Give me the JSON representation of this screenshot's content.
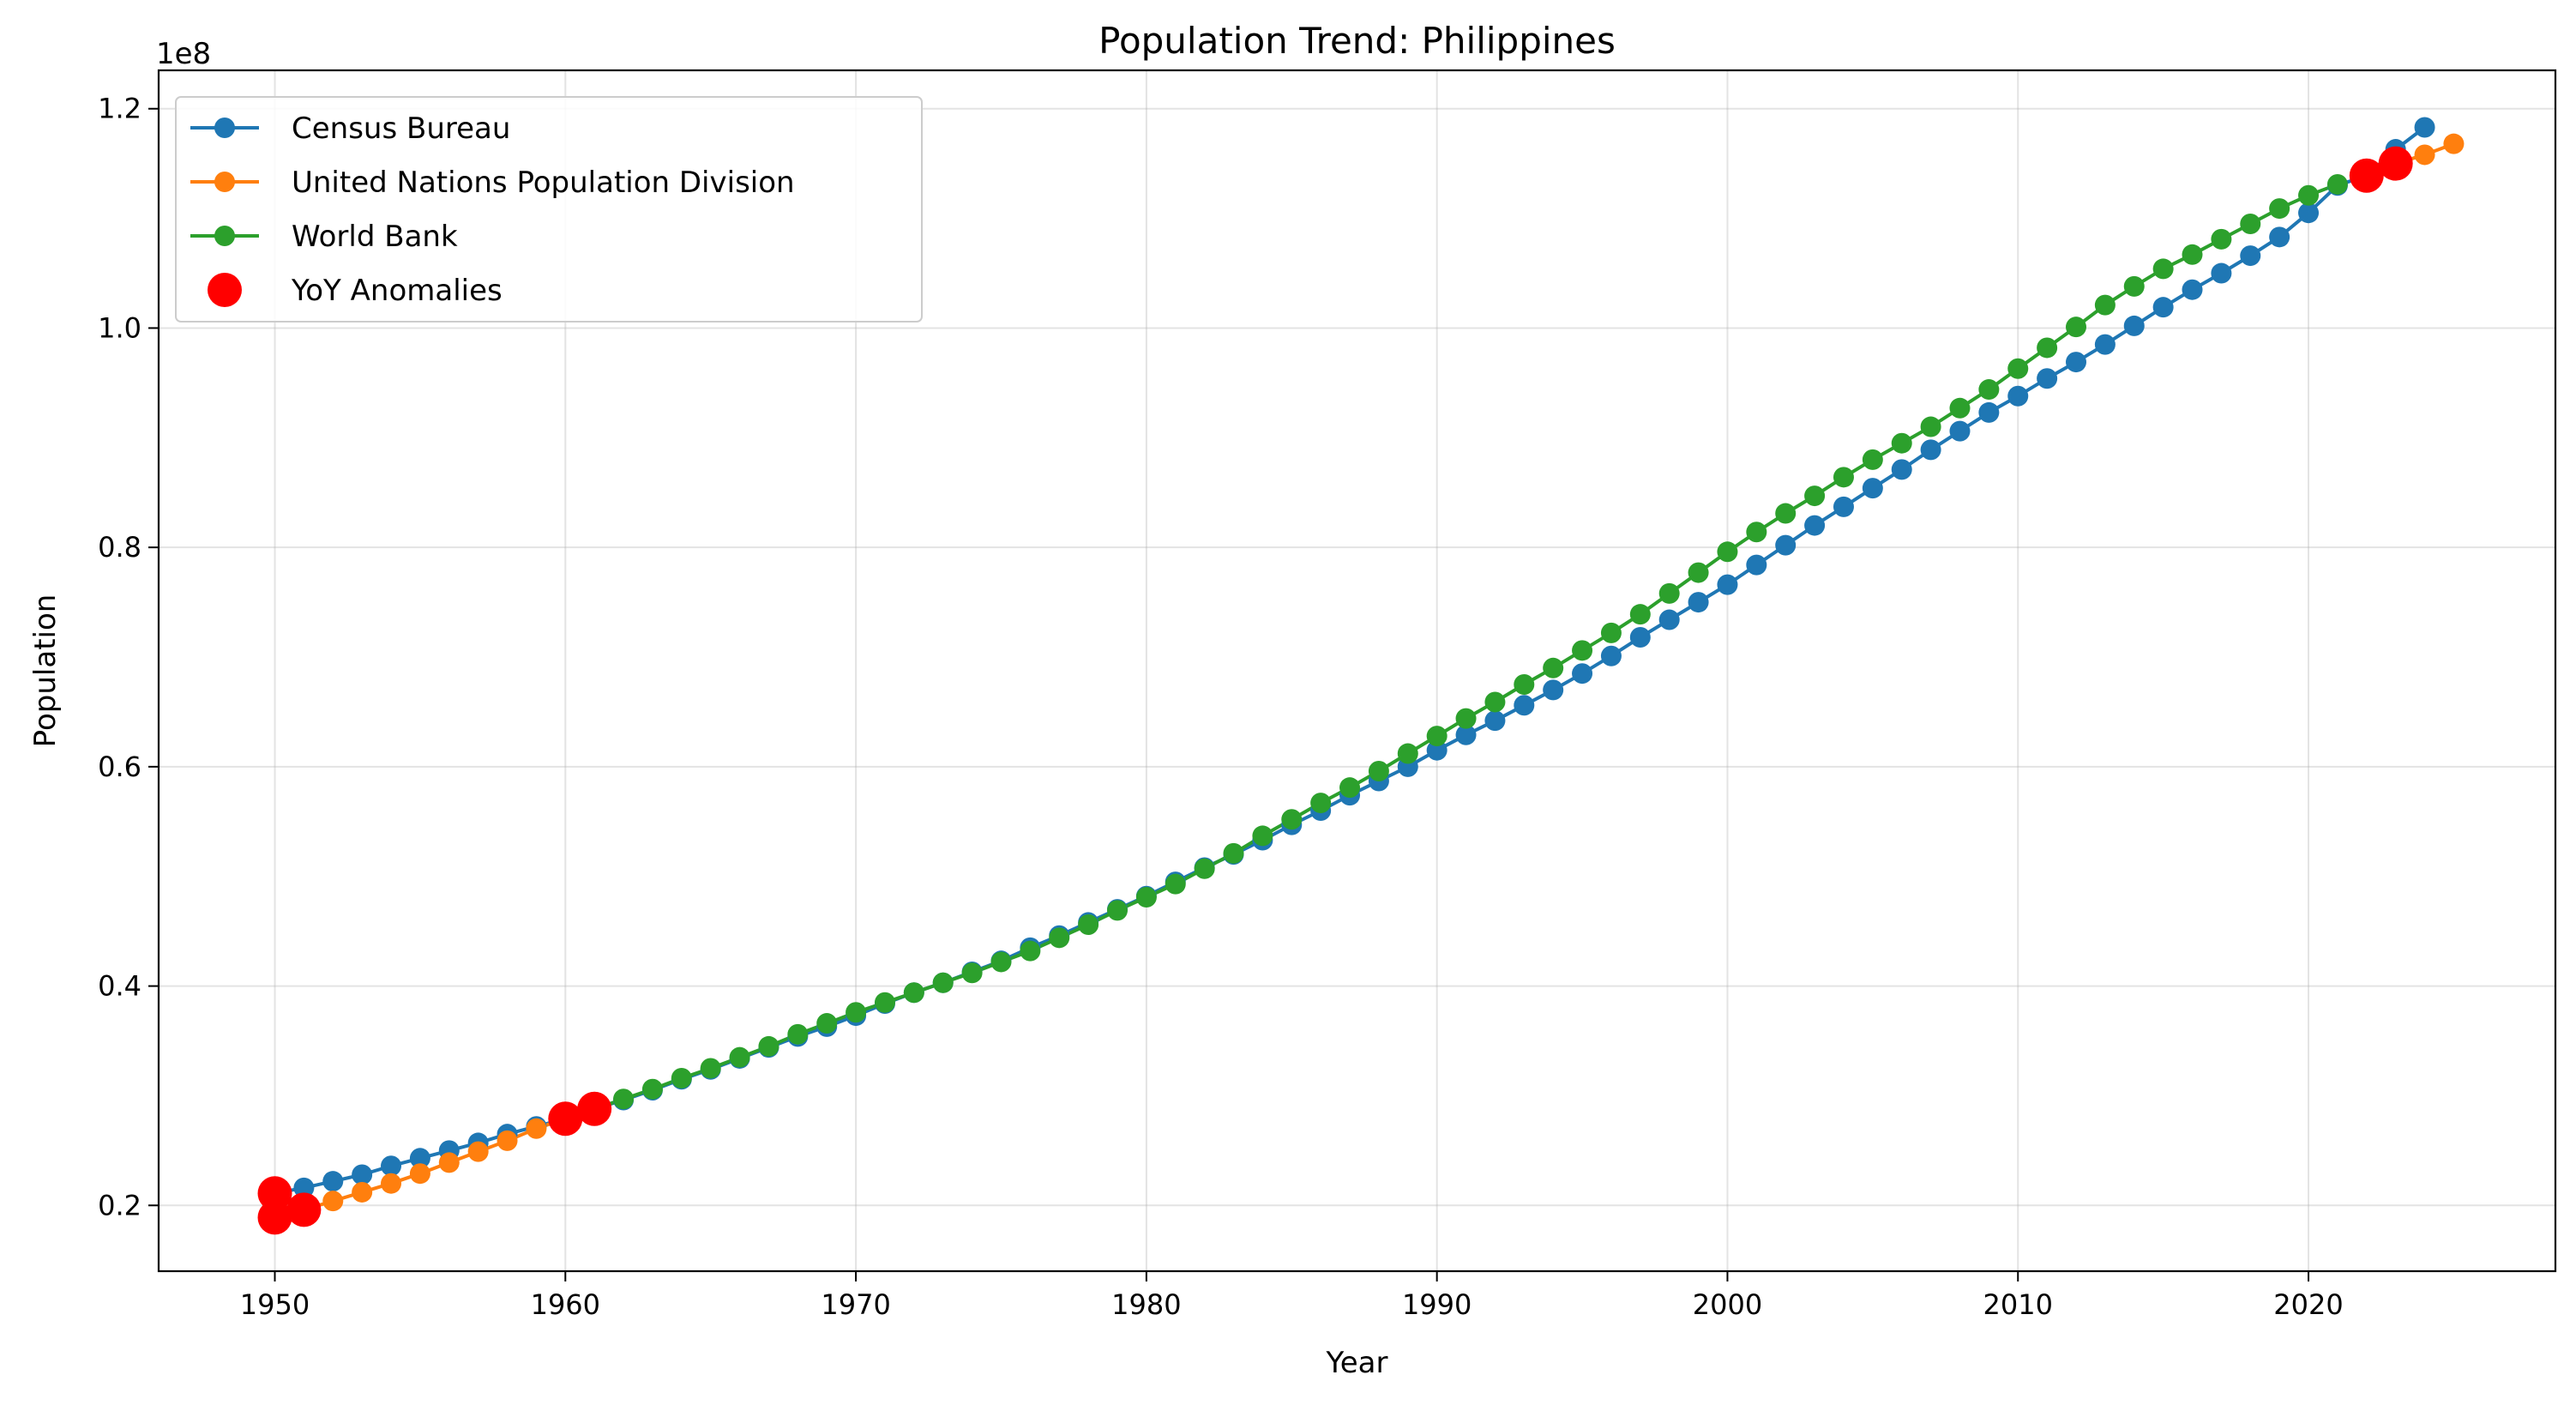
{
  "chart_data": {
    "type": "line",
    "title": "Population Trend: Philippines",
    "xlabel": "Year",
    "ylabel": "Population",
    "y_offset_label": "1e8",
    "y_scale": 100000000,
    "xlim": [
      1946,
      2028.5
    ],
    "ylim": [
      14000000,
      123500000
    ],
    "x_ticks": [
      1950,
      1960,
      1970,
      1980,
      1990,
      2000,
      2010,
      2020
    ],
    "x_tick_labels": [
      "1950",
      "1960",
      "1970",
      "1980",
      "1990",
      "2000",
      "2010",
      "2020"
    ],
    "y_ticks": [
      20000000,
      40000000,
      60000000,
      80000000,
      100000000,
      120000000
    ],
    "y_tick_labels": [
      "0.2",
      "0.4",
      "0.6",
      "0.8",
      "1.0",
      "1.2"
    ],
    "grid": true,
    "legend_position": "top-left",
    "series": [
      {
        "name": "Census Bureau",
        "color": "#1f77b4",
        "x": [
          1950,
          1951,
          1952,
          1953,
          1954,
          1955,
          1956,
          1957,
          1958,
          1959,
          1960,
          1961,
          1962,
          1963,
          1964,
          1965,
          1966,
          1967,
          1968,
          1969,
          1970,
          1971,
          1972,
          1973,
          1974,
          1975,
          1976,
          1977,
          1978,
          1979,
          1980,
          1981,
          1982,
          1983,
          1984,
          1985,
          1986,
          1987,
          1988,
          1989,
          1990,
          1991,
          1992,
          1993,
          1994,
          1995,
          1996,
          1997,
          1998,
          1999,
          2000,
          2001,
          2002,
          2003,
          2004,
          2005,
          2006,
          2007,
          2008,
          2009,
          2010,
          2011,
          2012,
          2013,
          2014,
          2015,
          2016,
          2017,
          2018,
          2019,
          2020,
          2021,
          2022,
          2023,
          2024
        ],
        "y": [
          21100000,
          21600000,
          22200000,
          22800000,
          23600000,
          24300000,
          25000000,
          25700000,
          26500000,
          27200000,
          27900000,
          28800000,
          29600000,
          30500000,
          31500000,
          32400000,
          33400000,
          34400000,
          35400000,
          36300000,
          37300000,
          38400000,
          39400000,
          40300000,
          41300000,
          42300000,
          43500000,
          44600000,
          45800000,
          47000000,
          48200000,
          49500000,
          50800000,
          52000000,
          53300000,
          54700000,
          56000000,
          57400000,
          58700000,
          60000000,
          61500000,
          62900000,
          64200000,
          65600000,
          67000000,
          68500000,
          70100000,
          71800000,
          73400000,
          75000000,
          76600000,
          78400000,
          80200000,
          82000000,
          83700000,
          85400000,
          87100000,
          88900000,
          90600000,
          92300000,
          93800000,
          95400000,
          96900000,
          98500000,
          100200000,
          101900000,
          103500000,
          105000000,
          106600000,
          108300000,
          110500000,
          113000000,
          113900000,
          116300000,
          118300000
        ]
      },
      {
        "name": "United Nations Population Division",
        "color": "#ff7f0e",
        "x": [
          1950,
          1951,
          1952,
          1953,
          1954,
          1955,
          1956,
          1957,
          1958,
          1959,
          1960,
          2022,
          2023,
          2024,
          2025
        ],
        "y": [
          18900000,
          19600000,
          20400000,
          21200000,
          22000000,
          22900000,
          23900000,
          24900000,
          25900000,
          27000000,
          27900000,
          113900000,
          115000000,
          115800000,
          116800000
        ]
      },
      {
        "name": "World Bank",
        "color": "#2ca02c",
        "x": [
          1960,
          1961,
          1962,
          1963,
          1964,
          1965,
          1966,
          1967,
          1968,
          1969,
          1970,
          1971,
          1972,
          1973,
          1974,
          1975,
          1976,
          1977,
          1978,
          1979,
          1980,
          1981,
          1982,
          1983,
          1984,
          1985,
          1986,
          1987,
          1988,
          1989,
          1990,
          1991,
          1992,
          1993,
          1994,
          1995,
          1996,
          1997,
          1998,
          1999,
          2000,
          2001,
          2002,
          2003,
          2004,
          2005,
          2006,
          2007,
          2008,
          2009,
          2010,
          2011,
          2012,
          2013,
          2014,
          2015,
          2016,
          2017,
          2018,
          2019,
          2020,
          2021
        ],
        "y": [
          27900000,
          28800000,
          29700000,
          30600000,
          31600000,
          32500000,
          33500000,
          34500000,
          35600000,
          36600000,
          37600000,
          38500000,
          39400000,
          40300000,
          41200000,
          42200000,
          43200000,
          44400000,
          45600000,
          46900000,
          48100000,
          49300000,
          50700000,
          52100000,
          53700000,
          55200000,
          56700000,
          58100000,
          59600000,
          61200000,
          62800000,
          64400000,
          65900000,
          67500000,
          69000000,
          70600000,
          72200000,
          73900000,
          75800000,
          77700000,
          79600000,
          81400000,
          83100000,
          84700000,
          86400000,
          88000000,
          89500000,
          91000000,
          92700000,
          94400000,
          96300000,
          98200000,
          100100000,
          102100000,
          103800000,
          105400000,
          106700000,
          108100000,
          109500000,
          110900000,
          112100000,
          113100000
        ]
      },
      {
        "name": "YoY Anomalies",
        "color": "#ff0000",
        "type": "scatter",
        "x": [
          1950,
          1950,
          1951,
          1960,
          1961,
          2022,
          2023
        ],
        "y": [
          21100000,
          18900000,
          19600000,
          27900000,
          28800000,
          113900000,
          115000000
        ]
      }
    ]
  }
}
